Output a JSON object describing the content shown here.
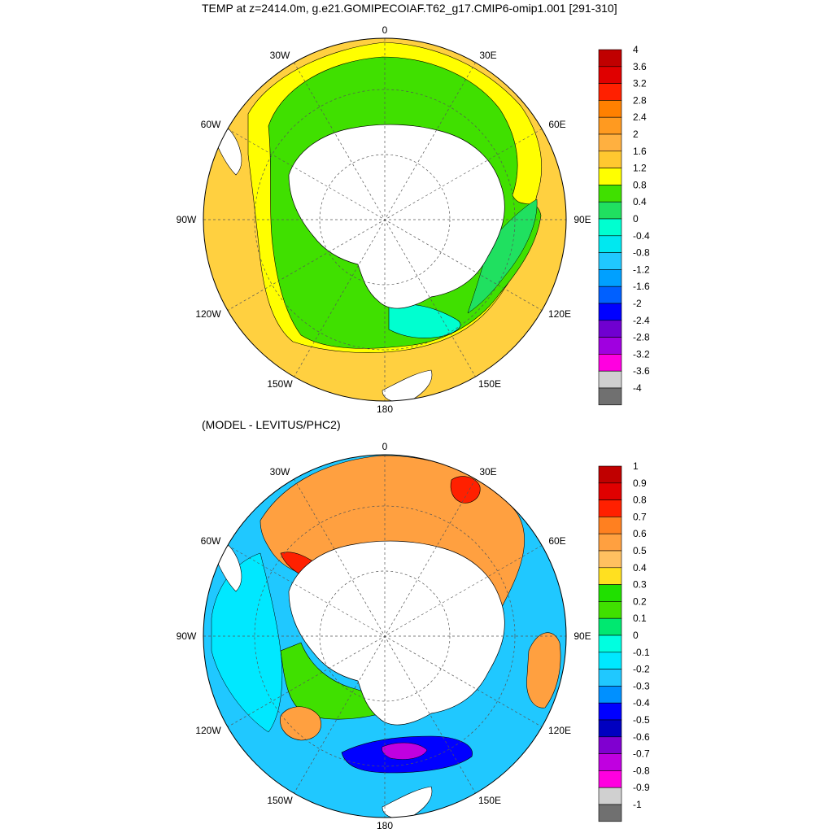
{
  "top_panel": {
    "title": "TEMP at z=2414.0m, g.e21.GOMIPECOIAF.T62_g17.CMIP6-omip1.001 [291-310]",
    "lon_labels": {
      "lon0": "0",
      "lon30e": "30E",
      "lon60e": "60E",
      "lon90e": "90E",
      "lon120e": "120E",
      "lon150e": "150E",
      "lon180": "180",
      "lon150w": "150W",
      "lon120w": "120W",
      "lon90w": "90W",
      "lon60w": "60W",
      "lon30w": "30W"
    },
    "colorbar": {
      "labels": [
        "4",
        "3.6",
        "3.2",
        "2.8",
        "2.4",
        "2",
        "1.6",
        "1.2",
        "0.8",
        "0.4",
        "0",
        "-0.4",
        "-0.8",
        "-1.2",
        "-1.6",
        "-2",
        "-2.4",
        "-2.8",
        "-3.2",
        "-3.6",
        "-4"
      ],
      "colors": [
        "#c00000",
        "#e00000",
        "#ff2000",
        "#ff8000",
        "#ff9a20",
        "#ffb040",
        "#ffc830",
        "#ffff00",
        "#40e000",
        "#20e060",
        "#00ffd0",
        "#00e8f0",
        "#20c8ff",
        "#00a0ff",
        "#0060ff",
        "#0000ff",
        "#7000d0",
        "#a000e0",
        "#ff00e0",
        "#d0d0d0",
        "#707070"
      ]
    },
    "map_colors": {
      "outer": "#ffd040",
      "warm_band": "#ffff00",
      "cool_band": "#40e000",
      "cold_band": "#00ffd0",
      "land": "#ffffff"
    }
  },
  "bottom_panel": {
    "title": "(MODEL - LEVITUS/PHC2)",
    "lon_labels": {
      "lon0": "0",
      "lon30e": "30E",
      "lon60e": "60E",
      "lon90e": "90E",
      "lon120e": "120E",
      "lon150e": "150E",
      "lon180": "180",
      "lon150w": "150W",
      "lon120w": "120W",
      "lon90w": "90W",
      "lon60w": "60W",
      "lon30w": "30W"
    },
    "colorbar": {
      "labels": [
        "1",
        "0.9",
        "0.8",
        "0.7",
        "0.6",
        "0.5",
        "0.4",
        "0.3",
        "0.2",
        "0.1",
        "0",
        "-0.1",
        "-0.2",
        "-0.3",
        "-0.4",
        "-0.5",
        "-0.6",
        "-0.7",
        "-0.8",
        "-0.9",
        "-1"
      ],
      "colors": [
        "#c00000",
        "#e00000",
        "#ff2000",
        "#ff8020",
        "#ffa040",
        "#ffc060",
        "#ffe020",
        "#20e000",
        "#40e000",
        "#00e870",
        "#00ffe0",
        "#00e8ff",
        "#20c8ff",
        "#0090ff",
        "#0000ff",
        "#0000c0",
        "#8000d0",
        "#c000e0",
        "#ff00e0",
        "#d0d0d0",
        "#707070"
      ]
    },
    "map_colors": {
      "atlantic": "#ffa040",
      "hotspot": "#ff2000",
      "pacific_cyan": "#00e8ff",
      "pacific_blue": "#20c8ff",
      "shelf_green": "#40e000",
      "deep_blue": "#0000ff",
      "purple": "#c000e0",
      "land": "#ffffff"
    }
  }
}
